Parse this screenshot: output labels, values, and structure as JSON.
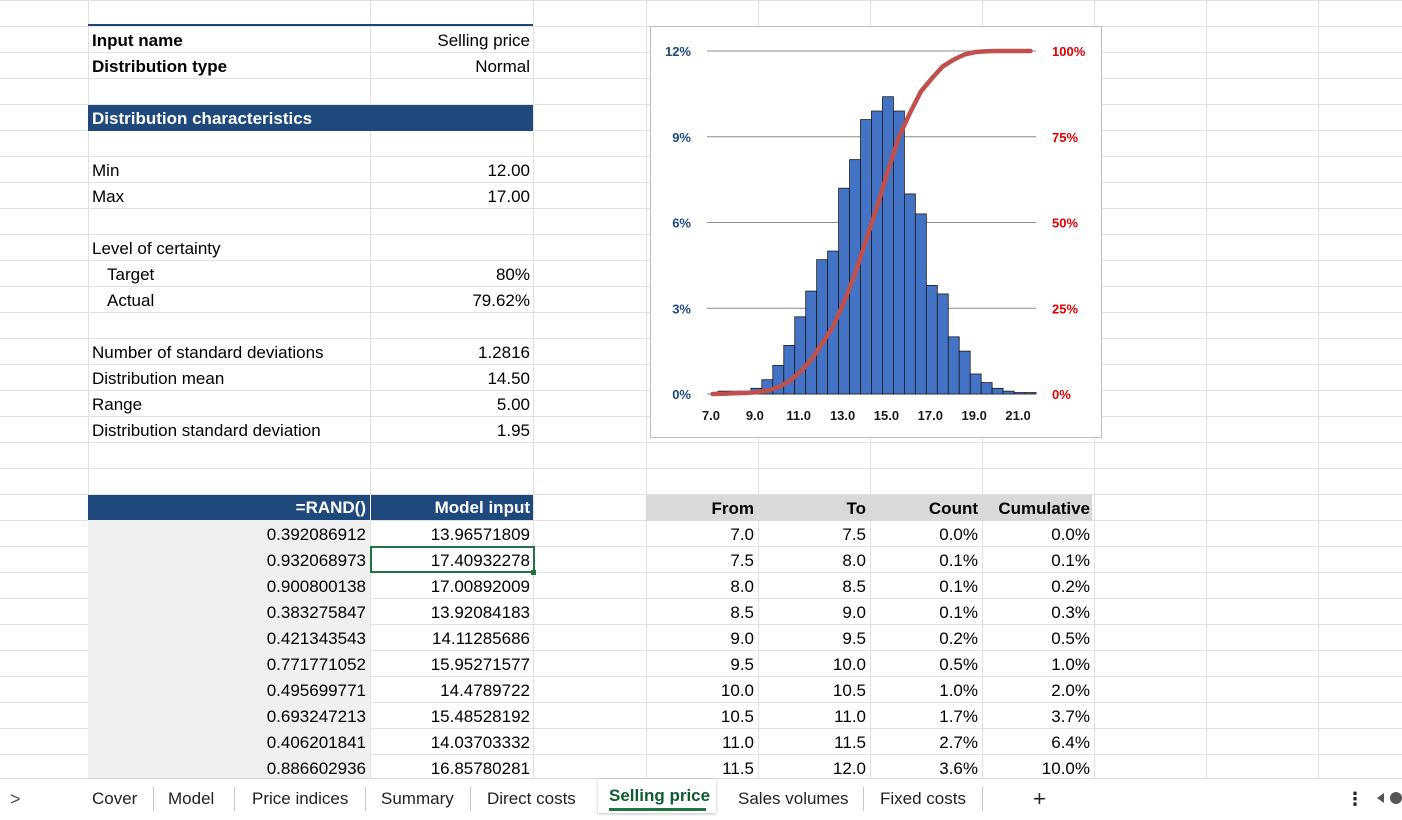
{
  "input_block": {
    "input_name_label": "Input name",
    "input_name_value": "Selling price",
    "dist_type_label": "Distribution type",
    "dist_type_value": "Normal",
    "characteristics_header": "Distribution characteristics",
    "min_label": "Min",
    "min_value": "12.00",
    "max_label": "Max",
    "max_value": "17.00",
    "certainty_label": "Level of certainty",
    "target_label": "Target",
    "target_value": "80%",
    "actual_label": "Actual",
    "actual_value": "79.62%",
    "nsd_label": "Number of standard deviations",
    "nsd_value": "1.2816",
    "mean_label": "Distribution mean",
    "mean_value": "14.50",
    "range_label": "Range",
    "range_value": "5.00",
    "sd_label": "Distribution standard deviation",
    "sd_value": "1.95"
  },
  "sim_table": {
    "headers": [
      "=RAND()",
      "Model input"
    ],
    "rows": [
      [
        "0.392086912",
        "13.96571809"
      ],
      [
        "0.932068973",
        "17.40932278"
      ],
      [
        "0.900800138",
        "17.00892009"
      ],
      [
        "0.383275847",
        "13.92084183"
      ],
      [
        "0.421343543",
        "14.11285686"
      ],
      [
        "0.771771052",
        "15.95271577"
      ],
      [
        "0.495699771",
        "14.4789722"
      ],
      [
        "0.693247213",
        "15.48528192"
      ],
      [
        "0.406201841",
        "14.03703332"
      ],
      [
        "0.886602936",
        "16.85780281"
      ]
    ]
  },
  "bin_table": {
    "headers": [
      "From",
      "To",
      "Count",
      "Cumulative"
    ],
    "rows": [
      [
        "7.0",
        "7.5",
        "0.0%",
        "0.0%"
      ],
      [
        "7.5",
        "8.0",
        "0.1%",
        "0.1%"
      ],
      [
        "8.0",
        "8.5",
        "0.1%",
        "0.2%"
      ],
      [
        "8.5",
        "9.0",
        "0.1%",
        "0.3%"
      ],
      [
        "9.0",
        "9.5",
        "0.2%",
        "0.5%"
      ],
      [
        "9.5",
        "10.0",
        "0.5%",
        "1.0%"
      ],
      [
        "10.0",
        "10.5",
        "1.0%",
        "2.0%"
      ],
      [
        "10.5",
        "11.0",
        "1.7%",
        "3.7%"
      ],
      [
        "11.0",
        "11.5",
        "2.7%",
        "6.4%"
      ],
      [
        "11.5",
        "12.0",
        "3.6%",
        "10.0%"
      ]
    ]
  },
  "chart_data": {
    "type": "bar",
    "x": [
      7.0,
      7.5,
      8.0,
      8.5,
      9.0,
      9.5,
      10.0,
      10.5,
      11.0,
      11.5,
      12.0,
      12.5,
      13.0,
      13.5,
      14.0,
      14.5,
      15.0,
      15.5,
      16.0,
      16.5,
      17.0,
      17.5,
      18.0,
      18.5,
      19.0,
      19.5,
      20.0,
      20.5,
      21.0,
      21.5
    ],
    "series": [
      {
        "values": [
          0.0,
          0.1,
          0.1,
          0.1,
          0.2,
          0.5,
          1.0,
          1.7,
          2.7,
          3.6,
          4.7,
          5.0,
          7.2,
          8.2,
          9.6,
          9.9,
          10.4,
          9.9,
          7.0,
          6.3,
          3.8,
          3.5,
          2.0,
          1.5,
          0.7,
          0.4,
          0.2,
          0.1,
          0.05,
          0.05
        ],
        "color": "#4472c4"
      },
      {
        "values": [
          0.0,
          0.1,
          0.2,
          0.3,
          0.5,
          1.0,
          2.0,
          3.7,
          6.4,
          10.0,
          14.7,
          19.7,
          26.9,
          35.1,
          44.7,
          54.6,
          65.0,
          74.9,
          81.9,
          88.2,
          92.0,
          95.5,
          97.5,
          99.0,
          99.7,
          99.9,
          100.0,
          100.0,
          100.0,
          100.0
        ],
        "color": "#c0504d"
      }
    ],
    "x_tick_labels": [
      "7.0",
      "9.0",
      "11.0",
      "13.0",
      "15.0",
      "17.0",
      "19.0",
      "21.0"
    ],
    "y_left_ticks": [
      "0%",
      "3%",
      "6%",
      "9%",
      "12%"
    ],
    "y_right_ticks": [
      "0%",
      "25%",
      "50%",
      "75%",
      "100%"
    ],
    "ylim_left": [
      0,
      12
    ],
    "ylim_right": [
      0,
      100
    ],
    "grid": true,
    "left_tick_color": "#1f497d",
    "right_tick_color": "#e00000"
  },
  "tabs": {
    "items": [
      "Cover",
      "Model",
      "Price indices",
      "Summary",
      "Direct costs",
      "Selling price",
      "Sales volumes",
      "Fixed costs"
    ],
    "active": "Selling price",
    "add_label": "+",
    "more_label": "⋮"
  }
}
